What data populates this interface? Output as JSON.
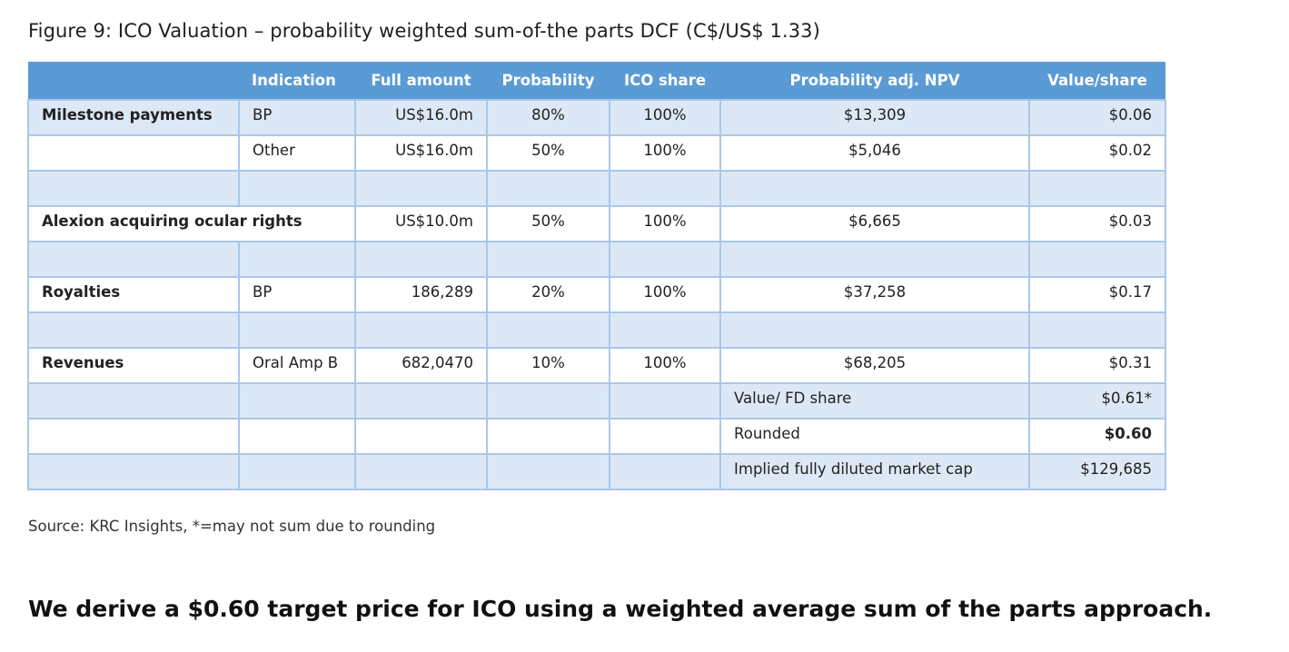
{
  "figure_title": "Figure 9: ICO Valuation – probability weighted sum-of-the parts DCF (C$/US$ 1.33)",
  "headers": [
    "",
    "Indication",
    "Full amount",
    "Probability",
    "ICO share",
    "Probability adj. NPV",
    "Value/share"
  ],
  "rows": [
    [
      "Milestone payments",
      "BP",
      "US$16.0m",
      "80%",
      "100%",
      "$13,309",
      "$0.06"
    ],
    [
      "",
      "Other",
      "US$16.0m",
      "50%",
      "100%",
      "$5,046",
      "$0.02"
    ],
    [
      "",
      "",
      "",
      "",
      "",
      "",
      ""
    ],
    [
      "Alexion acquiring ocular rights",
      "",
      "US$10.0m",
      "50%",
      "100%",
      "$6,665",
      "$0.03"
    ],
    [
      "",
      "",
      "",
      "",
      "",
      "",
      ""
    ],
    [
      "Royalties",
      "BP",
      "186,289",
      "20%",
      "100%",
      "$37,258",
      "$0.17"
    ],
    [
      "",
      "",
      "",
      "",
      "",
      "",
      ""
    ],
    [
      "Revenues",
      "Oral Amp B",
      "682,0470",
      "10%",
      "100%",
      "$68,205",
      "$0.31"
    ]
  ],
  "summary": [
    {
      "label": "Value/ FD share",
      "value": "$0.61*"
    },
    {
      "label": "Rounded",
      "value": "$0.60"
    },
    {
      "label": "Implied fully diluted market cap",
      "value": "$129,685"
    }
  ],
  "source": "Source: KRC Insights, *=may not sum due to rounding",
  "conclusion": "We derive a $0.60 target price for ICO using a weighted average sum of the parts approach."
}
